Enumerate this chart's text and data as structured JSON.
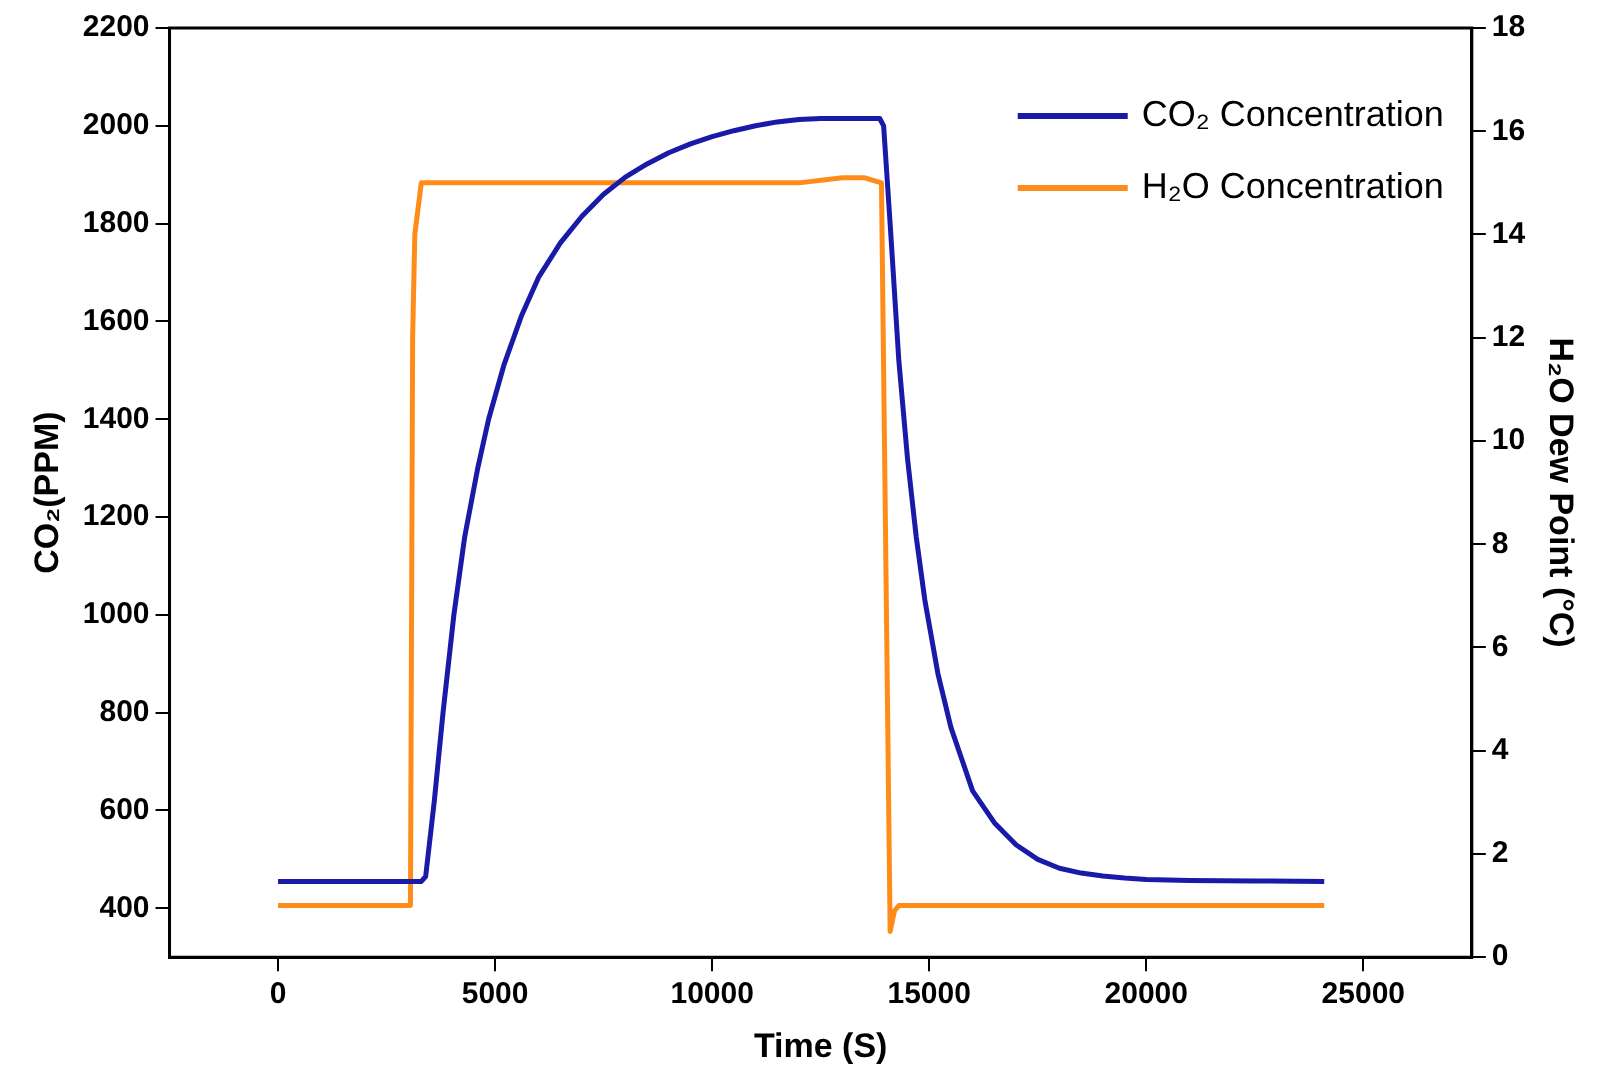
{
  "chart_data": {
    "type": "line",
    "xlabel": "Time (S)",
    "ylabel": "CO₂(PPM)",
    "y2label": "H₂O Dew Point (°C)",
    "xlim": [
      -2500,
      27500
    ],
    "xticks": [
      0,
      5000,
      10000,
      15000,
      20000,
      25000
    ],
    "ylim": [
      300,
      2200
    ],
    "yticks": [
      400,
      600,
      800,
      1000,
      1200,
      1400,
      1600,
      1800,
      2000,
      2200
    ],
    "y2lim": [
      0,
      18
    ],
    "y2ticks": [
      0,
      2,
      4,
      6,
      8,
      10,
      12,
      14,
      16,
      18
    ],
    "grid": false,
    "legend": "top right",
    "marker": "none",
    "line_style": "solid",
    "series": [
      {
        "name": "CO₂ Concentration",
        "color": "#1a1aa8",
        "x": [
          0,
          3300,
          3400,
          3600,
          3800,
          4050,
          4300,
          4600,
          4850,
          5200,
          5600,
          6000,
          6500,
          7000,
          7500,
          8000,
          8500,
          9000,
          9500,
          10000,
          10500,
          11000,
          11500,
          12000,
          12500,
          13000,
          13500,
          13860,
          13950,
          14100,
          14300,
          14500,
          14700,
          14900,
          15200,
          15500,
          16000,
          16500,
          17000,
          17500,
          18000,
          18500,
          19000,
          19500,
          20000,
          21000,
          22500,
          24100
        ],
        "values": [
          455,
          455,
          465,
          620,
          800,
          1000,
          1160,
          1300,
          1400,
          1510,
          1610,
          1690,
          1760,
          1815,
          1860,
          1895,
          1922,
          1945,
          1963,
          1978,
          1990,
          2000,
          2008,
          2013,
          2015,
          2015,
          2015,
          2015,
          2000,
          1800,
          1520,
          1320,
          1160,
          1030,
          880,
          770,
          640,
          575,
          530,
          500,
          482,
          472,
          466,
          462,
          459,
          457,
          456,
          455
        ]
      },
      {
        "name": "H₂O Concentration",
        "color": "#ff8c1a",
        "axis": "y2",
        "x": [
          0,
          3050,
          3100,
          3150,
          3300,
          6000,
          10000,
          12000,
          13000,
          13500,
          13900,
          14100,
          14200,
          14300,
          15000,
          17000,
          19000,
          21000,
          23000,
          24100
        ],
        "values": [
          1,
          1,
          12,
          14,
          15,
          15,
          15,
          15,
          15.1,
          15.1,
          15,
          0.5,
          0.9,
          1,
          1,
          1,
          1,
          1,
          1,
          1
        ]
      }
    ]
  }
}
